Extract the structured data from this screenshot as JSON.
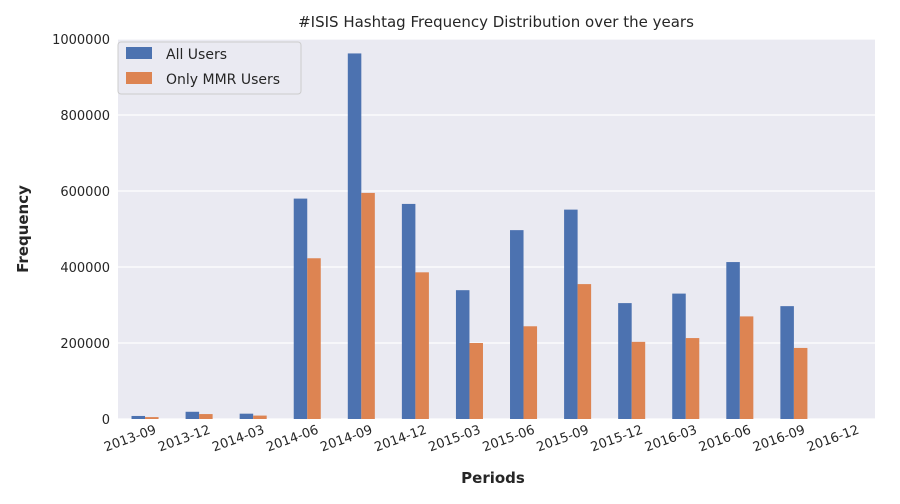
{
  "chart_data": {
    "type": "bar",
    "title": "#ISIS Hashtag Frequency Distribution over the years",
    "xlabel": "Periods",
    "ylabel": "Frequency",
    "categories": [
      "2013-09",
      "2013-12",
      "2014-03",
      "2014-06",
      "2014-09",
      "2014-12",
      "2015-03",
      "2015-06",
      "2015-09",
      "2015-12",
      "2016-03",
      "2016-06",
      "2016-09",
      "2016-12"
    ],
    "series": [
      {
        "name": "All Users",
        "color": "#4c72b0",
        "values": [
          8000,
          19000,
          14000,
          580000,
          962000,
          566000,
          339000,
          497000,
          551000,
          305000,
          330000,
          413000,
          297000,
          0
        ]
      },
      {
        "name": "Only MMR Users",
        "color": "#dd8452",
        "values": [
          5000,
          13000,
          9000,
          423000,
          595000,
          386000,
          200000,
          244000,
          355000,
          203000,
          213000,
          270000,
          187000,
          0
        ]
      }
    ],
    "ylim": [
      0,
      1000000
    ],
    "yticks": [
      0,
      200000,
      400000,
      600000,
      800000,
      1000000
    ],
    "ytick_labels": [
      "0",
      "200000",
      "400000",
      "600000",
      "800000",
      "1000000"
    ],
    "grid": true,
    "legend_position": "top-left",
    "background_color": "#eaeaf2",
    "grid_color": "#ffffff"
  }
}
